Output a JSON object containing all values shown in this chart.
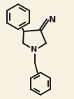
{
  "background_color": "#f7f2e2",
  "bond_color": "#1a1a1a",
  "atom_color": "#1a1a1a",
  "line_width": 1.4,
  "font_size": 8,
  "figsize": [
    1.06,
    1.42
  ],
  "dpi": 100,
  "ring_bond_color": "#1a1a1a"
}
